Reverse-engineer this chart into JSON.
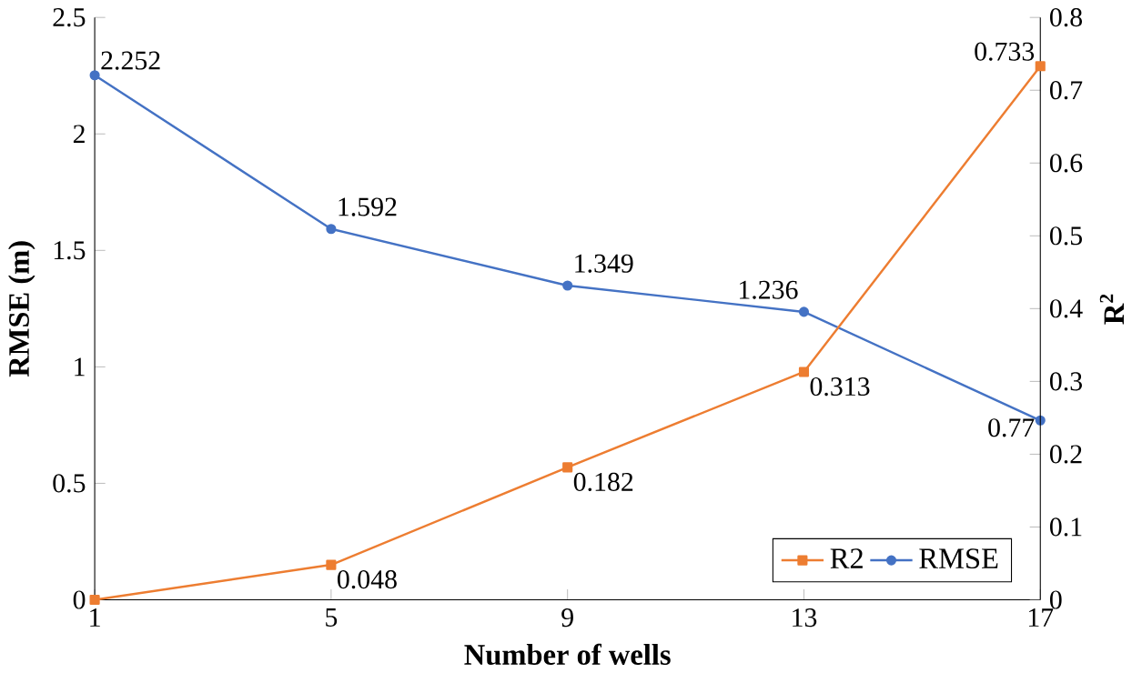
{
  "chart_data": {
    "type": "line",
    "xlabel": "Number of wells",
    "ylabel": "RMSE (m)",
    "y2label": "R$^{2}$",
    "x": [
      1,
      5,
      9,
      13,
      17
    ],
    "series": [
      {
        "name": "R2",
        "color": "#ed7d31",
        "axis": "y2",
        "marker": "square",
        "values": [
          0,
          0.048,
          0.182,
          0.313,
          0.733
        ],
        "value_labels": [
          null,
          "0.048",
          "0.182",
          "0.313",
          "0.733"
        ]
      },
      {
        "name": "RMSE",
        "color": "#4472c4",
        "marker": "circle",
        "values": [
          2.252,
          1.592,
          1.349,
          1.236,
          0.77
        ],
        "value_labels": [
          "2.252",
          "1.592",
          "1.349",
          "1.236",
          "0.77"
        ]
      }
    ],
    "xlim": [
      1,
      17
    ],
    "xticks": [
      1,
      5,
      9,
      13,
      17
    ],
    "ylim": [
      0,
      2.5
    ],
    "yticks": [
      0,
      0.5,
      1,
      1.5,
      2,
      2.5
    ],
    "y2lim": [
      0,
      0.8
    ],
    "y2ticks": [
      0,
      0.1,
      0.2,
      0.3,
      0.4,
      0.5,
      0.6,
      0.7,
      0.8
    ],
    "grid": false,
    "legend": "bottom right",
    "line_style": "solid"
  }
}
